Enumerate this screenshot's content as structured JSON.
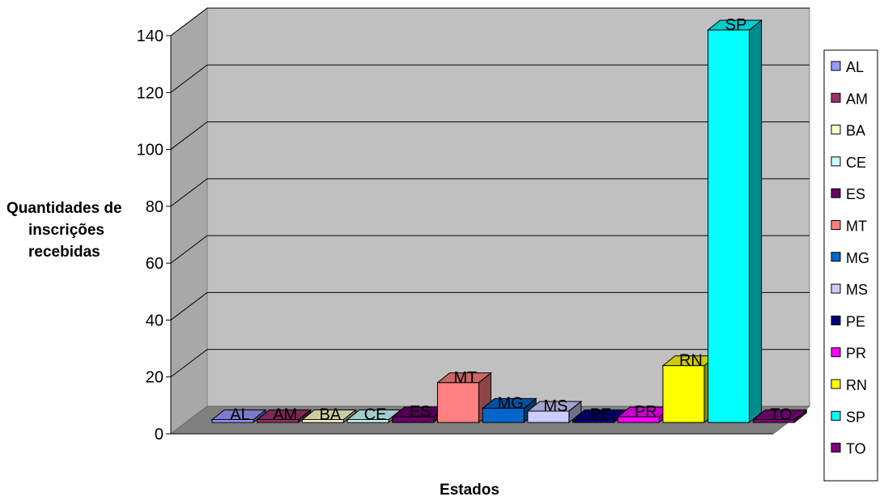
{
  "chart_data": {
    "type": "bar",
    "title": "",
    "xlabel": "Estados",
    "ylabel_lines": [
      "Quantidades de",
      "inscrições",
      "recebidas"
    ],
    "ylim": [
      0,
      140
    ],
    "yticks": [
      "0",
      "20",
      "40",
      "60",
      "80",
      "100",
      "120",
      "140"
    ],
    "grid": true,
    "legend_position": "right",
    "categories": [
      "AL",
      "AM",
      "BA",
      "CE",
      "ES",
      "MT",
      "MG",
      "MS",
      "PE",
      "PR",
      "RN",
      "SP",
      "TO"
    ],
    "values": [
      1,
      1,
      1,
      1,
      2,
      14,
      5,
      4,
      1,
      2,
      20,
      138,
      1
    ],
    "colors": [
      "#9999ff",
      "#993366",
      "#ffffcc",
      "#ccffff",
      "#660066",
      "#ff8080",
      "#0066cc",
      "#ccccff",
      "#000080",
      "#ff00ff",
      "#ffff00",
      "#00ffff",
      "#800080"
    ]
  }
}
